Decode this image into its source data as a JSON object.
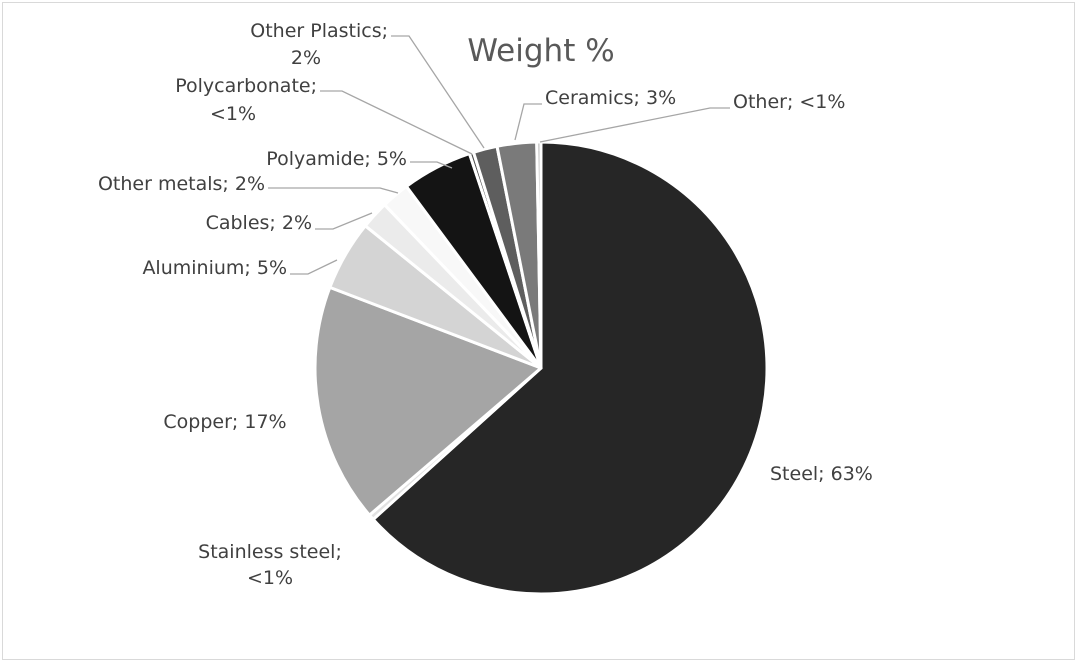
{
  "chart_data": {
    "type": "pie",
    "title": "Weight %",
    "slices": [
      {
        "name": "Steel",
        "label": "Steel; 63%",
        "value": 63,
        "color": "#262626"
      },
      {
        "name": "Stainless steel",
        "label_lines": [
          "Stainless steel;",
          "<1%"
        ],
        "value": 0.4,
        "color": "#e2e2e2"
      },
      {
        "name": "Copper",
        "label": "Copper; 17%",
        "value": 17,
        "color": "#a5a5a5"
      },
      {
        "name": "Aluminium",
        "label": "Aluminium; 5%",
        "value": 5,
        "color": "#d4d4d4"
      },
      {
        "name": "Cables",
        "label": "Cables; 2%",
        "value": 2,
        "color": "#ebebeb"
      },
      {
        "name": "Other metals",
        "label": "Other metals; 2%",
        "value": 2,
        "color": "#f8f8f8"
      },
      {
        "name": "Polyamide",
        "label": "Polyamide; 5%",
        "value": 5,
        "color": "#141414"
      },
      {
        "name": "Polycarbonate",
        "label_lines": [
          "Polycarbonate;",
          "<1%"
        ],
        "value": 0.3,
        "color": "#4d4d4d"
      },
      {
        "name": "Other Plastics",
        "label_lines": [
          "Other Plastics;",
          "2%"
        ],
        "value": 1.7,
        "color": "#5e5e5e"
      },
      {
        "name": "Ceramics",
        "label": "Ceramics; 3%",
        "value": 2.8,
        "color": "#7a7a7a"
      },
      {
        "name": "Other",
        "label": "Other; <1%",
        "value": 0.3,
        "color": "#bfbfbf"
      }
    ],
    "legend": "none",
    "labels": "outside with leader lines"
  }
}
